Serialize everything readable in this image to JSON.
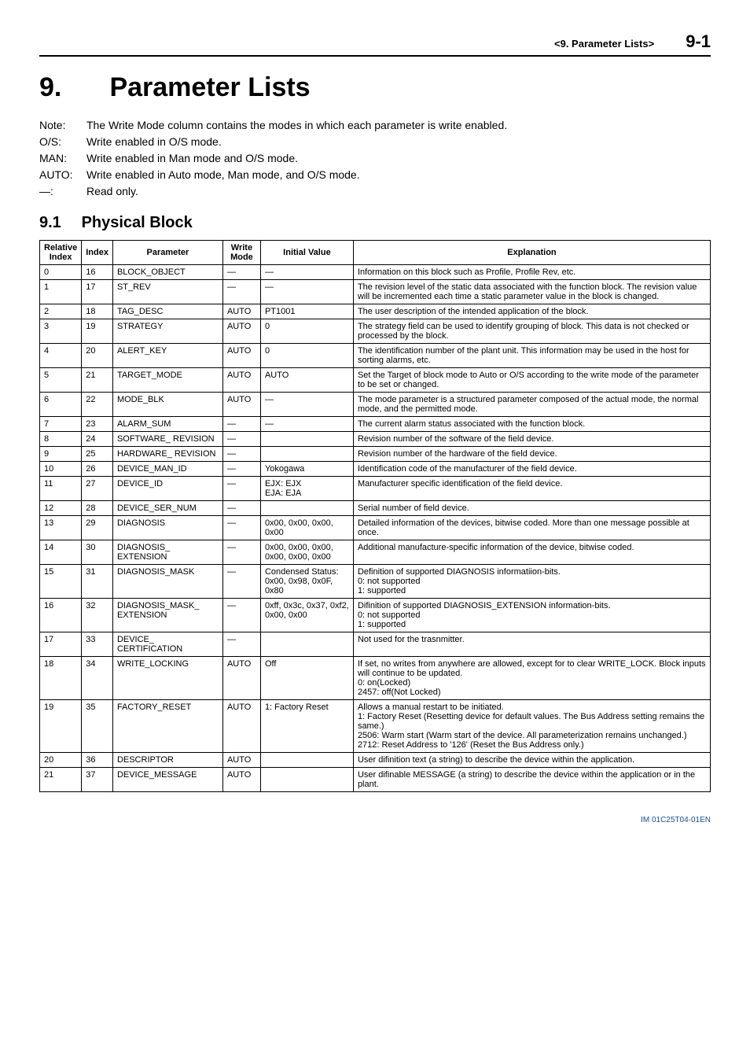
{
  "header": {
    "section_label": "<9.  Parameter Lists>",
    "page_number": "9-1"
  },
  "chapter": {
    "number": "9.",
    "title": "Parameter Lists"
  },
  "notes": [
    {
      "key": "Note:",
      "text": "The Write Mode column contains the modes in which each parameter is write enabled."
    },
    {
      "key": "O/S:",
      "text": "Write enabled in O/S mode."
    },
    {
      "key": "MAN:",
      "text": "Write enabled in Man mode and O/S mode."
    },
    {
      "key": "AUTO:",
      "text": "Write enabled in Auto mode, Man mode, and O/S mode."
    },
    {
      "key": "—:",
      "text": "Read only."
    }
  ],
  "section": {
    "number": "9.1",
    "title": "Physical Block"
  },
  "table": {
    "columns": [
      "Relative Index",
      "Index",
      "Parameter",
      "Write Mode",
      "Initial Value",
      "Explanation"
    ],
    "rows": [
      {
        "rel": "0",
        "idx": "16",
        "param": "BLOCK_OBJECT",
        "wm": "—",
        "iv": "—",
        "exp": "Information on this block such as Profile, Profile Rev, etc."
      },
      {
        "rel": "1",
        "idx": "17",
        "param": "ST_REV",
        "wm": "—",
        "iv": "—",
        "exp": "The revision level of the static data associated with the function block. The revision value will be incremented each time a static parameter value in the block is changed."
      },
      {
        "rel": "2",
        "idx": "18",
        "param": "TAG_DESC",
        "wm": "AUTO",
        "iv": "PT1001",
        "exp": "The user description of the intended application of the block."
      },
      {
        "rel": "3",
        "idx": "19",
        "param": "STRATEGY",
        "wm": "AUTO",
        "iv": "0",
        "exp": "The strategy field can be used to identify grouping of block. This data is not checked or processed by the block."
      },
      {
        "rel": "4",
        "idx": "20",
        "param": "ALERT_KEY",
        "wm": "AUTO",
        "iv": "0",
        "exp": "The identification number of the plant unit. This information may be used in the host for sorting alarms, etc."
      },
      {
        "rel": "5",
        "idx": "21",
        "param": "TARGET_MODE",
        "wm": "AUTO",
        "iv": "AUTO",
        "exp": "Set the Target of block mode to Auto or O/S according to the write mode of the parameter to be set or changed."
      },
      {
        "rel": "6",
        "idx": "22",
        "param": "MODE_BLK",
        "wm": "AUTO",
        "iv": "—",
        "exp": "The mode parameter is a structured parameter composed of the actual mode, the normal mode, and the permitted mode."
      },
      {
        "rel": "7",
        "idx": "23",
        "param": "ALARM_SUM",
        "wm": "—",
        "iv": "—",
        "exp": "The current alarm status associated with the function block."
      },
      {
        "rel": "8",
        "idx": "24",
        "param": "SOFTWARE_ REVISION",
        "wm": "—",
        "iv": "",
        "exp": "Revision number of the software of the field device."
      },
      {
        "rel": "9",
        "idx": "25",
        "param": "HARDWARE_ REVISION",
        "wm": "—",
        "iv": "",
        "exp": "Revision number of the hardware of the field device."
      },
      {
        "rel": "10",
        "idx": "26",
        "param": "DEVICE_MAN_ID",
        "wm": "—",
        "iv": "Yokogawa",
        "exp": "Identification code of the manufacturer of the field device."
      },
      {
        "rel": "11",
        "idx": "27",
        "param": "DEVICE_ID",
        "wm": "—",
        "iv": "EJX: EJX\nEJA: EJA",
        "exp": "Manufacturer specific identification of the field device."
      },
      {
        "rel": "12",
        "idx": "28",
        "param": "DEVICE_SER_NUM",
        "wm": "—",
        "iv": "",
        "exp": "Serial number of field device."
      },
      {
        "rel": "13",
        "idx": "29",
        "param": "DIAGNOSIS",
        "wm": "—",
        "iv": "0x00, 0x00, 0x00, 0x00",
        "exp": "Detailed information of the devices, bitwise coded. More than one message possible at once."
      },
      {
        "rel": "14",
        "idx": "30",
        "param": "DIAGNOSIS_ EXTENSION",
        "wm": "—",
        "iv": "0x00, 0x00, 0x00, 0x00, 0x00, 0x00",
        "exp": "Additional manufacture-specific information of the device, bitwise coded."
      },
      {
        "rel": "15",
        "idx": "31",
        "param": "DIAGNOSIS_MASK",
        "wm": "—",
        "iv": "Condensed Status: 0x00, 0x98, 0x0F, 0x80",
        "exp": "Definition of supported DIAGNOSIS informatiion-bits.\n  0: not supported\n  1: supported"
      },
      {
        "rel": "16",
        "idx": "32",
        "param": "DIAGNOSIS_MASK_ EXTENSION",
        "wm": "—",
        "iv": "0xff, 0x3c, 0x37, 0xf2, 0x00, 0x00",
        "exp": "Difinition of supported DIAGNOSIS_EXTENSION information-bits.\n  0: not supported\n  1: supported"
      },
      {
        "rel": "17",
        "idx": "33",
        "param": "DEVICE_ CERTIFICATION",
        "wm": "—",
        "iv": "",
        "exp": "Not used for the trasnmitter."
      },
      {
        "rel": "18",
        "idx": "34",
        "param": "WRITE_LOCKING",
        "wm": "AUTO",
        "iv": "Off",
        "exp": "If set, no writes from anywhere are allowed, except for to clear WRITE_LOCK. Block inputs will continue to be updated.\n  0: on(Locked)\n  2457: off(Not Locked)"
      },
      {
        "rel": "19",
        "idx": "35",
        "param": "FACTORY_RESET",
        "wm": "AUTO",
        "iv": "1: Factory Reset",
        "exp": "Allows a manual restart to be initiated.\n  1: Factory Reset (Resetting device for default values. The Bus Address setting remains the same.)\n  2506: Warm start (Warm start of the device. All parameterization remains unchanged.)\n  2712: Reset Address to '126' (Reset the Bus Address only.)"
      },
      {
        "rel": "20",
        "idx": "36",
        "param": "DESCRIPTOR",
        "wm": "AUTO",
        "iv": "",
        "exp": "User difinition text (a string) to describe the device within the application."
      },
      {
        "rel": "21",
        "idx": "37",
        "param": "DEVICE_MESSAGE",
        "wm": "AUTO",
        "iv": "",
        "exp": "User difinable MESSAGE (a string) to describe the device within the application or in the plant."
      }
    ]
  },
  "footer": {
    "doc_id": "IM 01C25T04-01EN"
  }
}
